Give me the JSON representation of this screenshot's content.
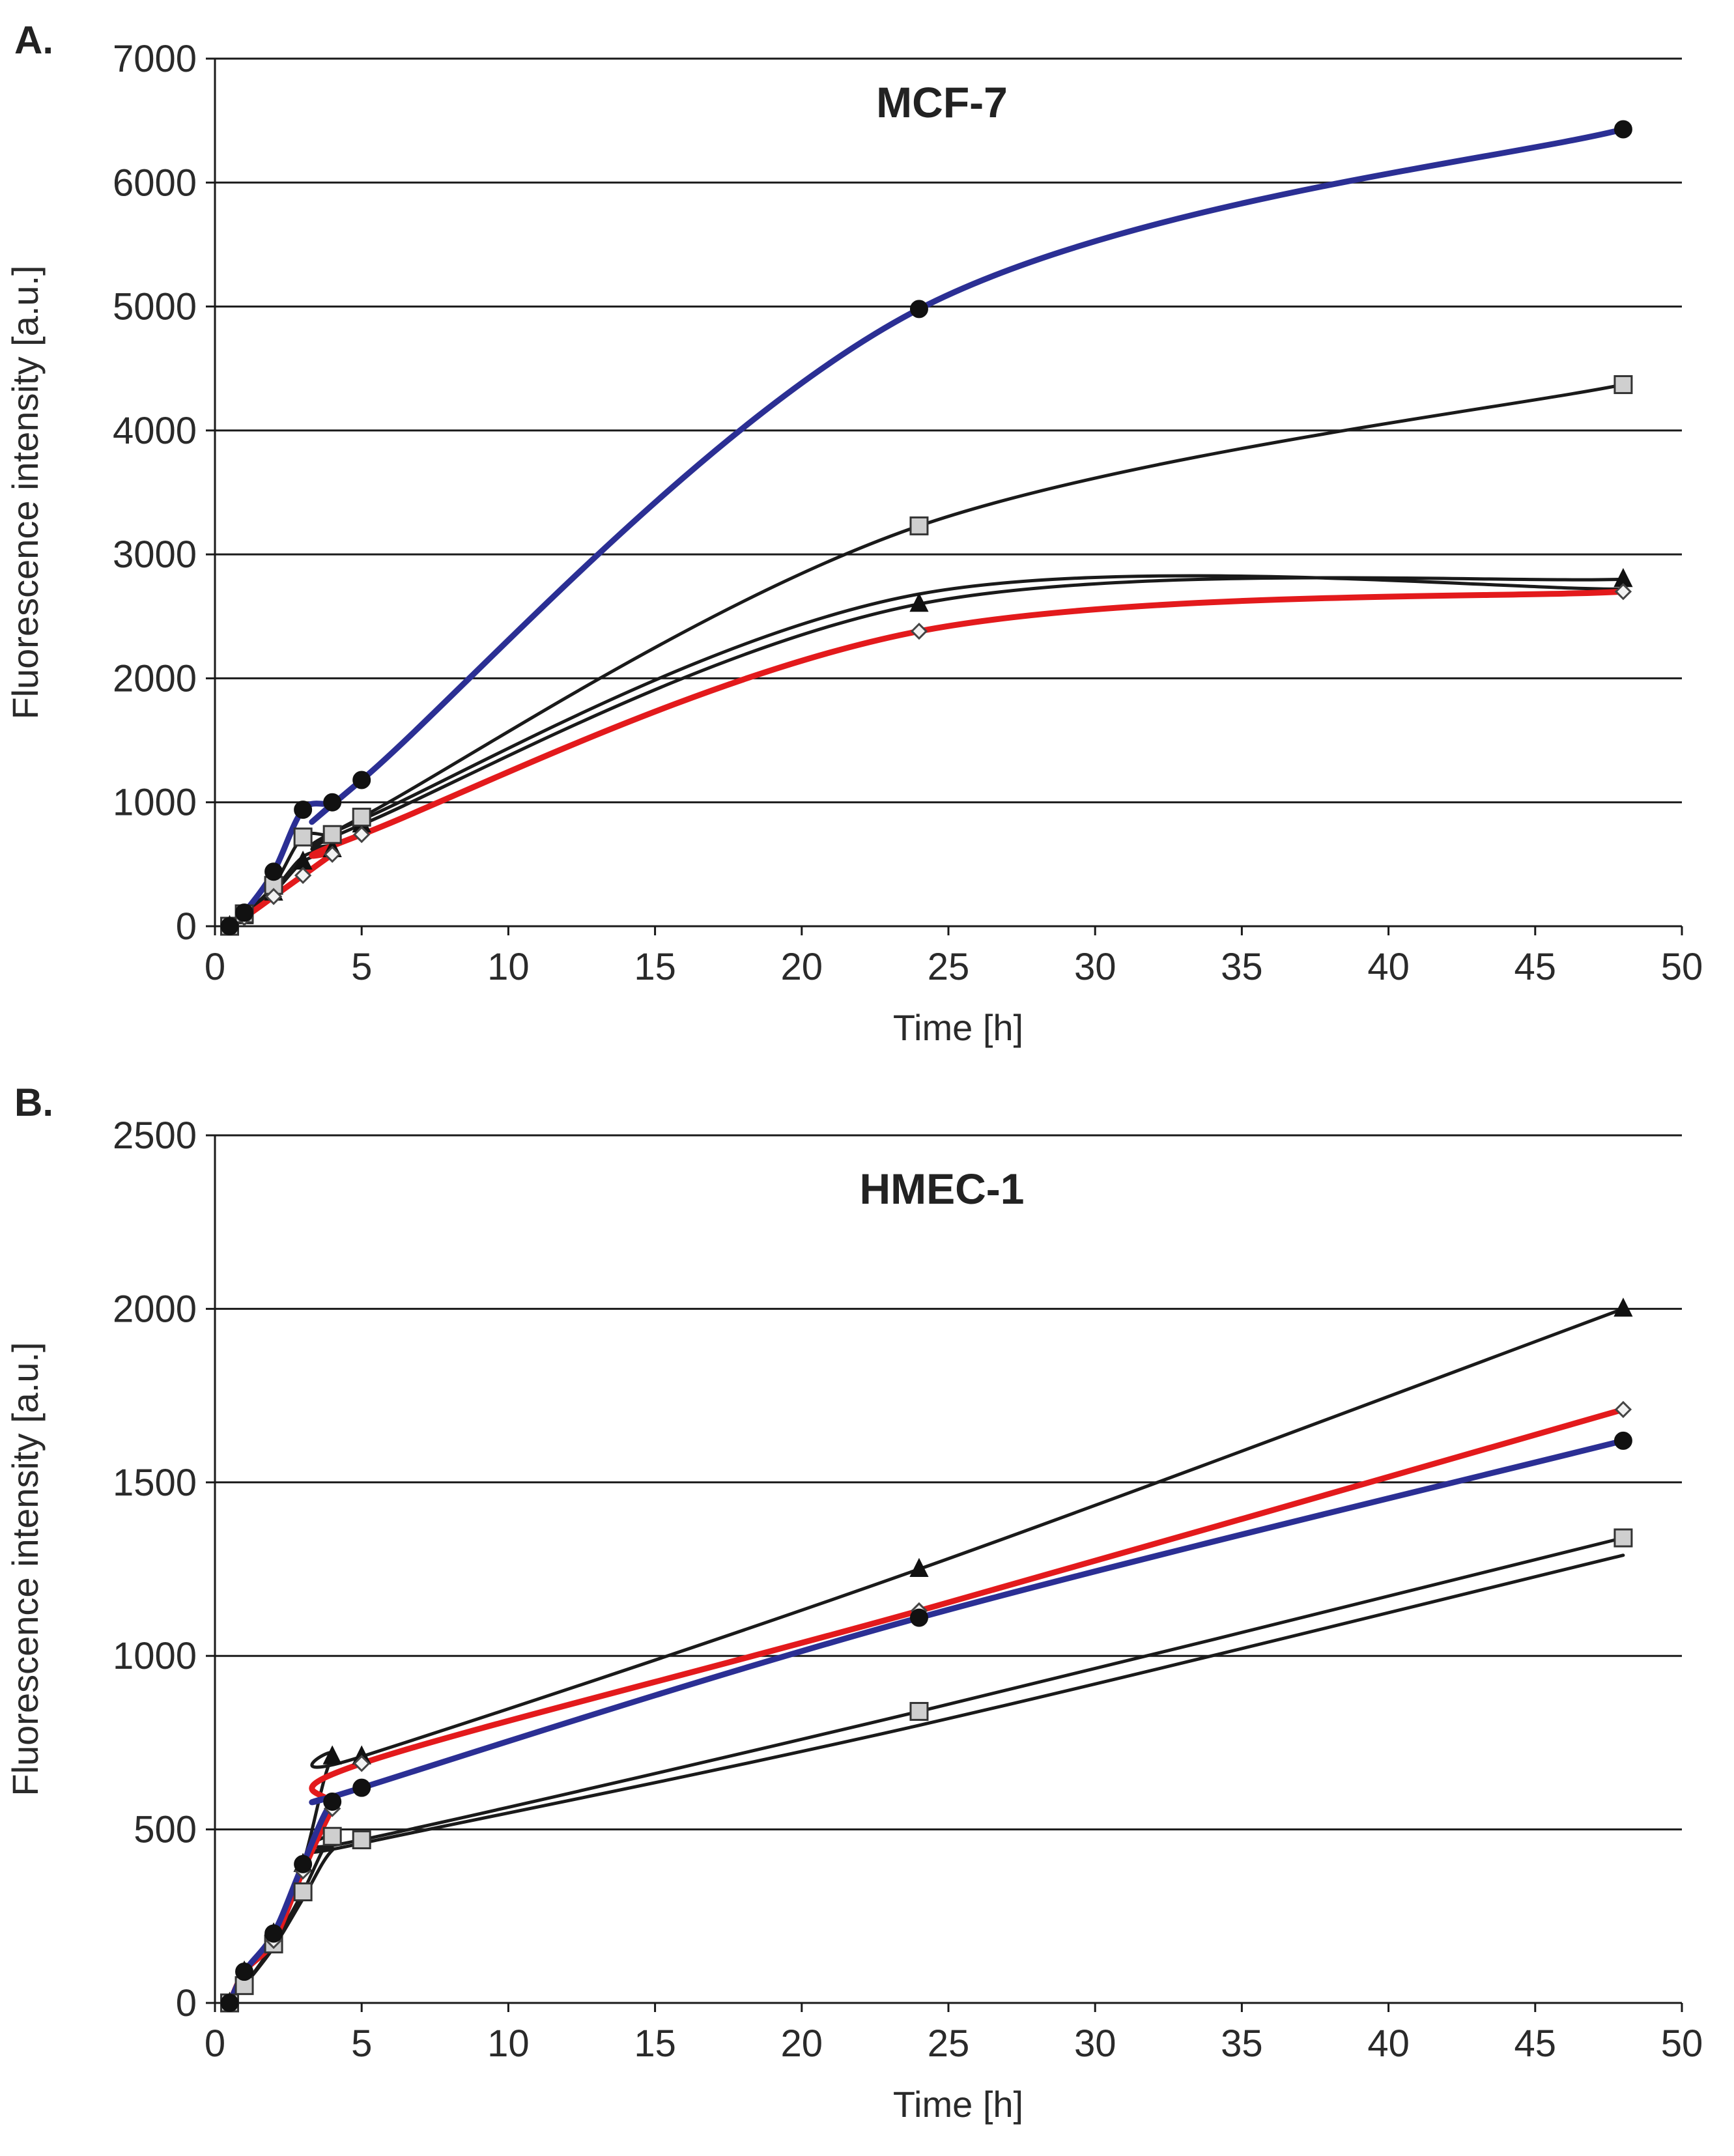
{
  "chart_data": [
    {
      "type": "line",
      "panel_label": "A.",
      "title": "MCF-7",
      "xlabel": "Time [h]",
      "ylabel": "Fluorescence intensity [a.u.]",
      "xlim": [
        0,
        50
      ],
      "ylim": [
        0,
        7000
      ],
      "xticks": [
        0,
        5,
        10,
        15,
        20,
        25,
        30,
        35,
        40,
        45,
        50
      ],
      "yticks": [
        0,
        1000,
        2000,
        3000,
        4000,
        5000,
        6000,
        7000
      ],
      "grid": "horizontal",
      "series": [
        {
          "name": "black-line-no-marker",
          "color": "#1a1a1a",
          "marker": "none",
          "line": "thin",
          "x": [
            0.5,
            1,
            2,
            3,
            4,
            5,
            24,
            48
          ],
          "y": [
            0,
            90,
            290,
            560,
            640,
            860,
            2680,
            2720
          ]
        },
        {
          "name": "triangle-series",
          "color": "#1a1a1a",
          "marker": "triangle",
          "line": "thin",
          "x": [
            0.5,
            1,
            2,
            3,
            4,
            5,
            24,
            48
          ],
          "y": [
            0,
            80,
            270,
            520,
            620,
            820,
            2600,
            2800
          ]
        },
        {
          "name": "square-series",
          "color": "#1a1a1a",
          "marker": "square",
          "line": "thin",
          "x": [
            0.5,
            1,
            2,
            3,
            4,
            5,
            24,
            48
          ],
          "y": [
            0,
            100,
            330,
            720,
            740,
            880,
            3230,
            4370
          ]
        },
        {
          "name": "diamond-series",
          "color": "#e31a1c",
          "marker": "diamond",
          "line": "thick",
          "x": [
            0.5,
            1,
            2,
            3,
            4,
            5,
            24,
            48
          ],
          "y": [
            0,
            70,
            240,
            410,
            580,
            740,
            2380,
            2700
          ]
        },
        {
          "name": "circle-series",
          "color": "#2b2f94",
          "marker": "circle",
          "line": "thick",
          "x": [
            0.5,
            1,
            2,
            3,
            4,
            5,
            24,
            48
          ],
          "y": [
            0,
            110,
            440,
            940,
            1000,
            1180,
            4980,
            6430
          ]
        }
      ]
    },
    {
      "type": "line",
      "panel_label": "B.",
      "title": "HMEC-1",
      "xlabel": "Time [h]",
      "ylabel": "Fluorescence intensity [a.u.]",
      "xlim": [
        0,
        50
      ],
      "ylim": [
        0,
        2500
      ],
      "xticks": [
        0,
        5,
        10,
        15,
        20,
        25,
        30,
        35,
        40,
        45,
        50
      ],
      "yticks": [
        0,
        500,
        1000,
        1500,
        2000,
        2500
      ],
      "grid": "horizontal",
      "series": [
        {
          "name": "black-line-no-marker",
          "color": "#1a1a1a",
          "marker": "none",
          "line": "thin",
          "x": [
            0.5,
            1,
            2,
            3,
            4,
            5,
            24,
            48
          ],
          "y": [
            0,
            50,
            160,
            300,
            440,
            460,
            800,
            1290
          ]
        },
        {
          "name": "triangle-series",
          "color": "#1a1a1a",
          "marker": "triangle",
          "line": "thin",
          "x": [
            0.5,
            1,
            2,
            3,
            4,
            5,
            24,
            48
          ],
          "y": [
            0,
            90,
            200,
            400,
            710,
            710,
            1250,
            2000
          ]
        },
        {
          "name": "square-series",
          "color": "#1a1a1a",
          "marker": "square",
          "line": "thin",
          "x": [
            0.5,
            1,
            2,
            3,
            4,
            5,
            24,
            48
          ],
          "y": [
            0,
            50,
            170,
            320,
            480,
            470,
            840,
            1340
          ]
        },
        {
          "name": "diamond-series",
          "color": "#e31a1c",
          "marker": "diamond",
          "line": "thick",
          "x": [
            0.5,
            1,
            2,
            3,
            4,
            5,
            24,
            48
          ],
          "y": [
            0,
            90,
            180,
            380,
            560,
            690,
            1130,
            1710
          ]
        },
        {
          "name": "circle-series",
          "color": "#2b2f94",
          "marker": "circle",
          "line": "thick",
          "x": [
            0.5,
            1,
            2,
            3,
            4,
            5,
            24,
            48
          ],
          "y": [
            0,
            90,
            200,
            400,
            580,
            620,
            1110,
            1620
          ]
        }
      ]
    }
  ]
}
